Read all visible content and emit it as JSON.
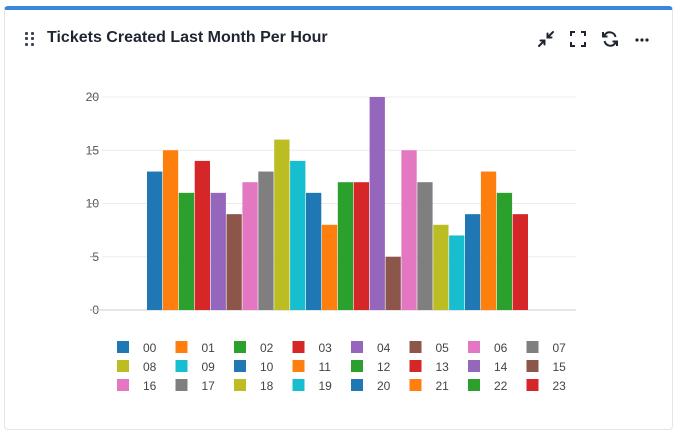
{
  "widget": {
    "title": "Tickets Created Last Month Per Hour",
    "icons": [
      "drag-handle-icon",
      "collapse-icon",
      "fullscreen-icon",
      "refresh-icon",
      "more-options-icon"
    ]
  },
  "colors": {
    "accent": "#3b86db",
    "palette": [
      "#1f77b4",
      "#ff7f0e",
      "#2ca02c",
      "#d62728",
      "#9467bd",
      "#8c564b",
      "#e377c2",
      "#7f7f7f",
      "#bcbd22",
      "#17becf"
    ]
  },
  "chart_data": {
    "type": "bar",
    "title": "",
    "xlabel": "",
    "ylabel": "",
    "ylim": [
      0,
      20
    ],
    "yticks": [
      0,
      5,
      10,
      15,
      20
    ],
    "grid": true,
    "legend_position": "bottom",
    "series": [
      {
        "name": "00",
        "values": [
          13
        ]
      },
      {
        "name": "01",
        "values": [
          15
        ]
      },
      {
        "name": "02",
        "values": [
          11
        ]
      },
      {
        "name": "03",
        "values": [
          14
        ]
      },
      {
        "name": "04",
        "values": [
          11
        ]
      },
      {
        "name": "05",
        "values": [
          9
        ]
      },
      {
        "name": "06",
        "values": [
          12
        ]
      },
      {
        "name": "07",
        "values": [
          13
        ]
      },
      {
        "name": "08",
        "values": [
          16
        ]
      },
      {
        "name": "09",
        "values": [
          14
        ]
      },
      {
        "name": "10",
        "values": [
          11
        ]
      },
      {
        "name": "11",
        "values": [
          8
        ]
      },
      {
        "name": "12",
        "values": [
          12
        ]
      },
      {
        "name": "13",
        "values": [
          12
        ]
      },
      {
        "name": "14",
        "values": [
          20
        ]
      },
      {
        "name": "15",
        "values": [
          5
        ]
      },
      {
        "name": "16",
        "values": [
          15
        ]
      },
      {
        "name": "17",
        "values": [
          12
        ]
      },
      {
        "name": "18",
        "values": [
          8
        ]
      },
      {
        "name": "19",
        "values": [
          7
        ]
      },
      {
        "name": "20",
        "values": [
          9
        ]
      },
      {
        "name": "21",
        "values": [
          13
        ]
      },
      {
        "name": "22",
        "values": [
          11
        ]
      },
      {
        "name": "23",
        "values": [
          9
        ]
      }
    ]
  }
}
